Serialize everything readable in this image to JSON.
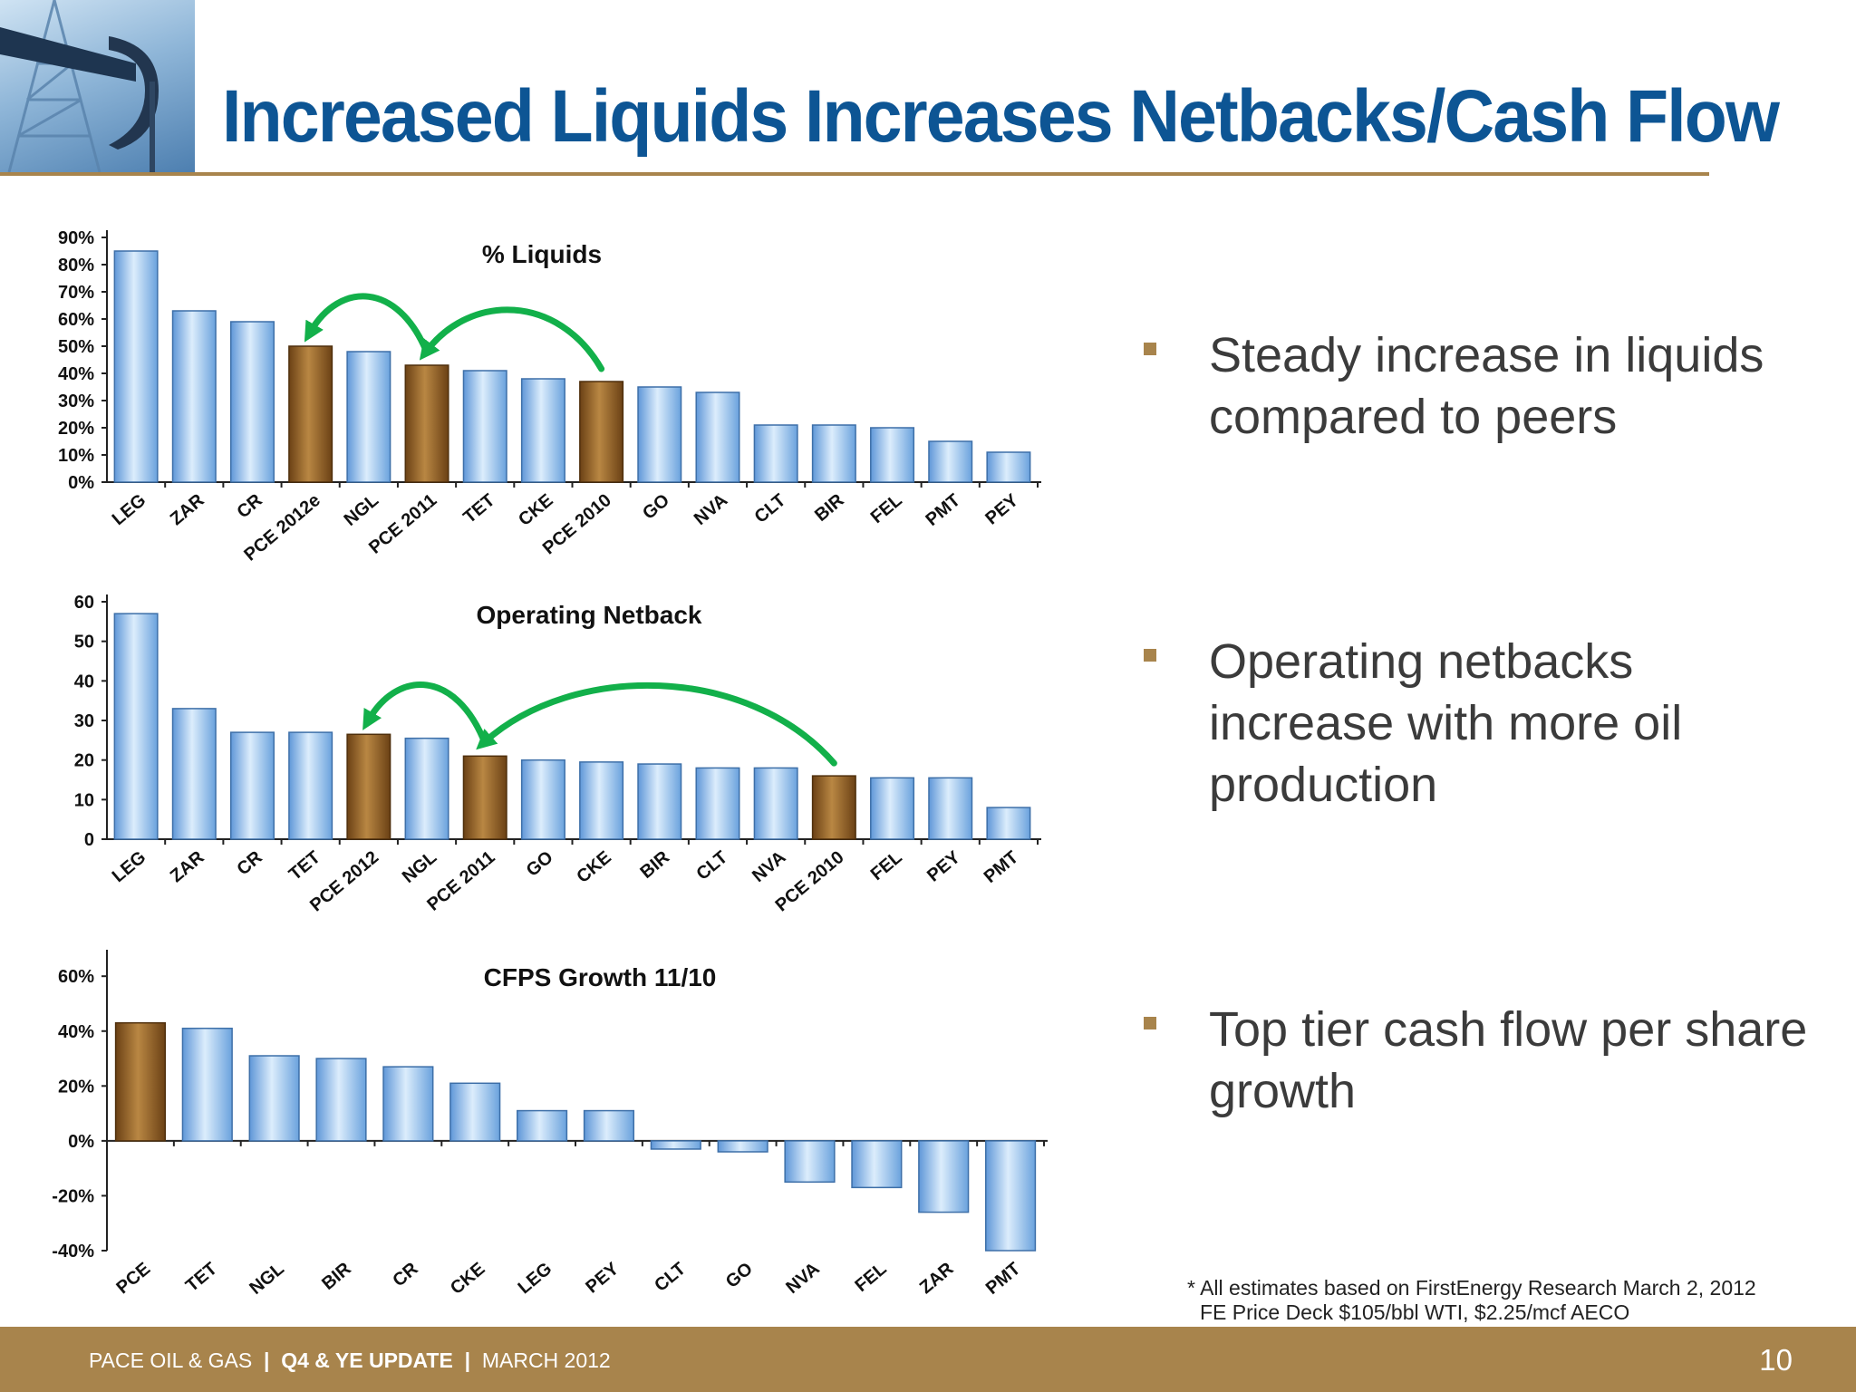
{
  "title": "Increased Liquids Increases Netbacks/Cash Flow",
  "colors": {
    "title": "#0d5594",
    "accent_gold": "#a8844c",
    "pace_bar": "#8a5a22",
    "peer_bar": "#8ec0ee",
    "arrow_green": "#12b04a",
    "body_text": "#3b3b3b"
  },
  "bullets": [
    {
      "text": "Steady increase in liquids compared to peers"
    },
    {
      "text": "Operating netbacks increase with more oil production"
    },
    {
      "text": "Top tier cash flow per share growth"
    }
  ],
  "footnote": {
    "line1": "* All estimates based on FirstEnergy Research March 2, 2012",
    "line2": "FE Price Deck $105/bbl WTI, $2.25/mcf AECO"
  },
  "footer": {
    "company": "PACE OIL & GAS",
    "separator": "|",
    "update": "Q4 & YE UPDATE",
    "date": "MARCH 2012",
    "page": "10"
  },
  "chart_data": [
    {
      "type": "bar",
      "title": "% Liquids",
      "categories": [
        "LEG",
        "ZAR",
        "CR",
        "PCE 2012e",
        "NGL",
        "PCE 2011",
        "TET",
        "CKE",
        "PCE 2010",
        "GO",
        "NVA",
        "CLT",
        "BIR",
        "FEL",
        "PMT",
        "PEY"
      ],
      "values": [
        85,
        63,
        59,
        50,
        48,
        43,
        41,
        38,
        37,
        35,
        33,
        21,
        21,
        20,
        15,
        11
      ],
      "highlight": [
        "PCE 2012e",
        "PCE 2011",
        "PCE 2010"
      ],
      "ylim": [
        0,
        90
      ],
      "yticks": [
        0,
        10,
        20,
        30,
        40,
        50,
        60,
        70,
        80,
        90
      ],
      "ytick_labels": [
        "0%",
        "10%",
        "20%",
        "30%",
        "40%",
        "50%",
        "60%",
        "70%",
        "80%",
        "90%"
      ],
      "arrows": [
        {
          "from": "PCE 2010",
          "to": "PCE 2011"
        },
        {
          "from": "PCE 2011",
          "to": "PCE 2012e"
        }
      ]
    },
    {
      "type": "bar",
      "title": "Operating Netback",
      "categories": [
        "LEG",
        "ZAR",
        "CR",
        "TET",
        "PCE 2012",
        "NGL",
        "PCE 2011",
        "GO",
        "CKE",
        "BIR",
        "CLT",
        "NVA",
        "PCE 2010",
        "FEL",
        "PEY",
        "PMT"
      ],
      "values": [
        57,
        33,
        27,
        27,
        26.5,
        25.5,
        21,
        20,
        19.5,
        19,
        18,
        18,
        16,
        15.5,
        15.5,
        8
      ],
      "highlight": [
        "PCE 2012",
        "PCE 2011",
        "PCE 2010"
      ],
      "ylim": [
        0,
        60
      ],
      "yticks": [
        0,
        10,
        20,
        30,
        40,
        50,
        60
      ],
      "ytick_labels": [
        "0",
        "10",
        "20",
        "30",
        "40",
        "50",
        "60"
      ],
      "arrows": [
        {
          "from": "PCE 2010",
          "to": "PCE 2011"
        },
        {
          "from": "PCE 2011",
          "to": "PCE 2012"
        }
      ]
    },
    {
      "type": "bar",
      "title": "CFPS Growth 11/10",
      "categories": [
        "PCE",
        "TET",
        "NGL",
        "BIR",
        "CR",
        "CKE",
        "LEG",
        "PEY",
        "CLT",
        "GO",
        "NVA",
        "FEL",
        "ZAR",
        "PMT"
      ],
      "values": [
        43,
        41,
        31,
        30,
        27,
        21,
        11,
        11,
        -3,
        -4,
        -15,
        -17,
        -26,
        -40
      ],
      "highlight": [
        "PCE"
      ],
      "ylim": [
        -40,
        67
      ],
      "yticks": [
        -40,
        -20,
        0,
        20,
        40,
        60
      ],
      "ytick_labels": [
        "-40%",
        "-20%",
        "0%",
        "20%",
        "40%",
        "60%"
      ],
      "arrows": []
    }
  ]
}
